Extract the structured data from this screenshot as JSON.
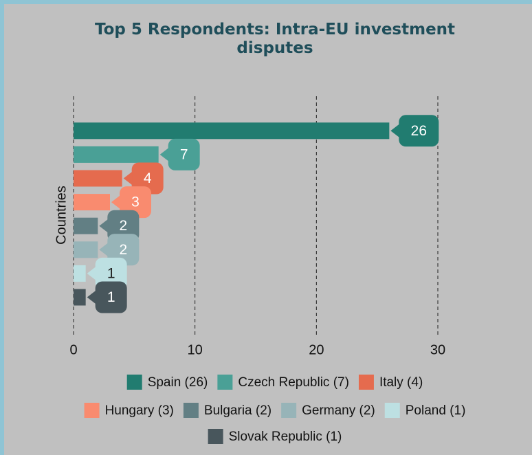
{
  "chart_data": {
    "type": "bar",
    "orientation": "horizontal",
    "title": "Top 5 Respondents: Intra-EU investment disputes",
    "ylabel": "Countries",
    "categories": [
      "Spain (26)",
      "Czech Republic (7)",
      "Italy (4)",
      "Hungary (3)",
      "Bulgaria (2)",
      "Germany (2)",
      "Poland (1)",
      "Slovak Republic (1)"
    ],
    "values": [
      26,
      7,
      4,
      3,
      2,
      2,
      1,
      1
    ],
    "colors": [
      "#217c70",
      "#4aa096",
      "#e56b4e",
      "#f98b6f",
      "#627f84",
      "#97b4b8",
      "#bde0e2",
      "#48565c"
    ],
    "xlim": [
      0,
      30
    ],
    "xticks": [
      0,
      10,
      20,
      30
    ],
    "grid": true
  }
}
